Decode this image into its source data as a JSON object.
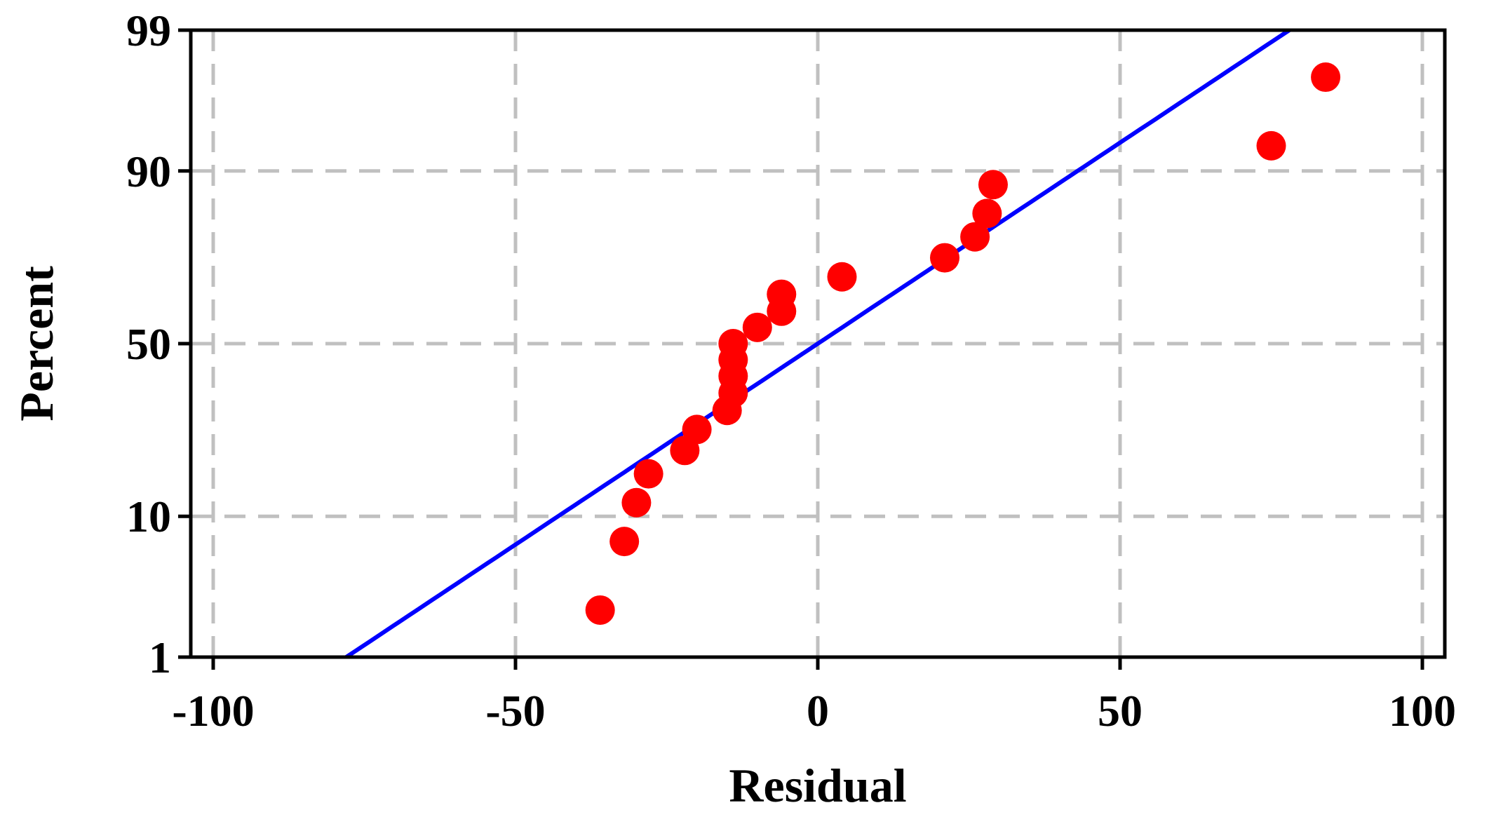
{
  "chart_data": {
    "type": "scatter",
    "subtype": "normal-probability-plot",
    "xlabel": "Residual",
    "ylabel": "Percent",
    "xlim": [
      -100,
      100
    ],
    "ylim": [
      1,
      99
    ],
    "y_scale": "normal-probability",
    "x_ticks": [
      -100,
      -50,
      0,
      50,
      100
    ],
    "x_tick_labels": [
      "-100",
      "-50",
      "0",
      "50",
      "100"
    ],
    "y_ticks": [
      1,
      10,
      50,
      90,
      99
    ],
    "y_tick_labels": [
      "1",
      "10",
      "50",
      "90",
      "99"
    ],
    "grid": true,
    "colors": {
      "points": "#ff0000",
      "fit_line": "#0000ff",
      "grid": "#c0c0c0",
      "axes": "#000000"
    },
    "series": [
      {
        "type": "scatter",
        "x": [
          -36,
          -32,
          -30,
          -28,
          -22,
          -20,
          -15,
          -14,
          -14,
          -14,
          -14,
          -10,
          -6,
          -6,
          4,
          21,
          26,
          28,
          29,
          75,
          84
        ],
        "y": [
          2.4,
          7.1,
          11.9,
          16.7,
          21.4,
          26.2,
          31.0,
          35.7,
          40.5,
          45.2,
          50.0,
          54.8,
          59.5,
          64.3,
          69.0,
          73.8,
          78.6,
          83.3,
          88.1,
          92.9,
          97.6
        ]
      },
      {
        "type": "line",
        "x": [
          -78,
          78
        ],
        "y": [
          1,
          99
        ]
      }
    ]
  }
}
